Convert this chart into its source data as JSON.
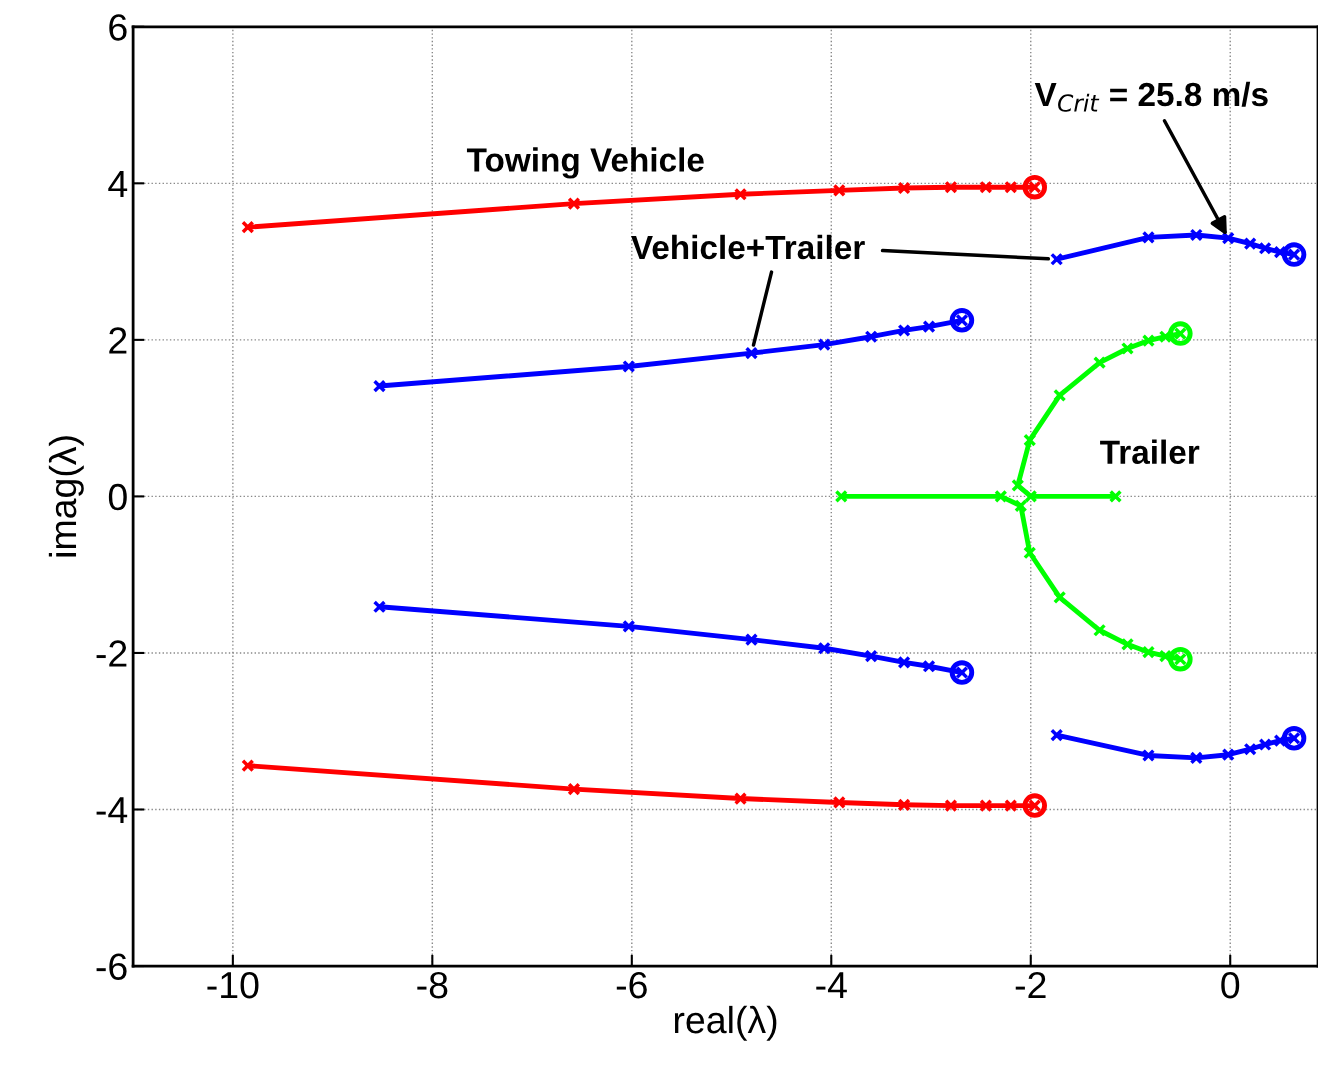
{
  "chart_data": {
    "type": "line",
    "xlabel": "real(λ)",
    "ylabel": "imag(λ)",
    "xlim": [
      -11,
      0.88
    ],
    "ylim": [
      -6,
      6
    ],
    "xticks": [
      -10,
      -8,
      -6,
      -4,
      -2,
      0
    ],
    "yticks": [
      -6,
      -4,
      -2,
      0,
      2,
      4,
      6
    ],
    "grid": true,
    "marker": "cross",
    "line_style": "solid",
    "series": [
      {
        "color": "#ff0000",
        "x": [
          -9.85,
          -6.58,
          -4.91,
          -3.92,
          -3.27,
          -2.8,
          -2.45,
          -2.2,
          -1.96
        ],
        "values": [
          3.44,
          3.74,
          3.86,
          3.91,
          3.94,
          3.95,
          3.95,
          3.95,
          3.95
        ]
      },
      {
        "color": "#ff0000",
        "x": [
          -9.85,
          -6.58,
          -4.91,
          -3.92,
          -3.27,
          -2.8,
          -2.45,
          -2.2,
          -1.96
        ],
        "values": [
          -3.44,
          -3.74,
          -3.86,
          -3.91,
          -3.94,
          -3.95,
          -3.95,
          -3.95,
          -3.95
        ]
      },
      {
        "color": "#0000ff",
        "x": [
          -8.53,
          -6.03,
          -4.8,
          -4.07,
          -3.6,
          -3.27,
          -3.02,
          -2.69
        ],
        "values": [
          1.41,
          1.66,
          1.83,
          1.94,
          2.04,
          2.12,
          2.17,
          2.25
        ]
      },
      {
        "color": "#0000ff",
        "x": [
          -8.53,
          -6.03,
          -4.8,
          -4.07,
          -3.6,
          -3.27,
          -3.02,
          -2.69
        ],
        "values": [
          -1.41,
          -1.66,
          -1.83,
          -1.94,
          -2.04,
          -2.12,
          -2.17,
          -2.25
        ]
      },
      {
        "color": "#0000ff",
        "x": [
          -1.74,
          -0.82,
          -0.34,
          -0.02,
          0.2,
          0.35,
          0.5,
          0.64
        ],
        "values": [
          3.03,
          3.31,
          3.34,
          3.3,
          3.23,
          3.17,
          3.12,
          3.09
        ]
      },
      {
        "color": "#0000ff",
        "x": [
          -1.74,
          -0.82,
          -0.34,
          -0.02,
          0.2,
          0.35,
          0.5,
          0.64
        ],
        "values": [
          -3.05,
          -3.31,
          -3.34,
          -3.3,
          -3.23,
          -3.17,
          -3.12,
          -3.09
        ]
      },
      {
        "color": "#00ff00",
        "x": [
          -3.9,
          -2.3,
          -2.1,
          -2.01,
          -1.71,
          -1.31,
          -1.03,
          -0.82,
          -0.65,
          -0.5
        ],
        "values": [
          0,
          0,
          -0.12,
          -0.72,
          -1.29,
          -1.71,
          -1.89,
          -1.99,
          -2.04,
          -2.08
        ]
      },
      {
        "color": "#00ff00",
        "x": [
          -1.15,
          -2.0,
          -2.13,
          -2.01,
          -1.71,
          -1.31,
          -1.03,
          -0.82,
          -0.65,
          -0.5
        ],
        "values": [
          0,
          0,
          0.14,
          0.72,
          1.29,
          1.71,
          1.89,
          1.99,
          2.04,
          2.08
        ]
      },
      {
        "type": "scatter",
        "marker": "circle",
        "color": "#ff0000",
        "x": [
          -1.96,
          -1.96
        ],
        "values": [
          3.95,
          -3.95
        ]
      },
      {
        "type": "scatter",
        "marker": "circle",
        "color": "#0000ff",
        "x": [
          -2.69,
          -2.69,
          0.64,
          0.64
        ],
        "values": [
          2.25,
          -2.25,
          3.09,
          -3.09
        ]
      },
      {
        "type": "scatter",
        "marker": "circle",
        "color": "#00ff00",
        "x": [
          -0.5,
          -0.5
        ],
        "values": [
          2.08,
          -2.08
        ]
      }
    ],
    "annotations": [
      "Towing Vehicle",
      {
        "text": "Vehicle+Trailer",
        "x": -4.8,
        "y": 1.83
      },
      "Trailer",
      {
        "text": "V$_{Crit}$ = 25.8 m/s",
        "x": -0.02,
        "y": 3.3
      }
    ]
  }
}
